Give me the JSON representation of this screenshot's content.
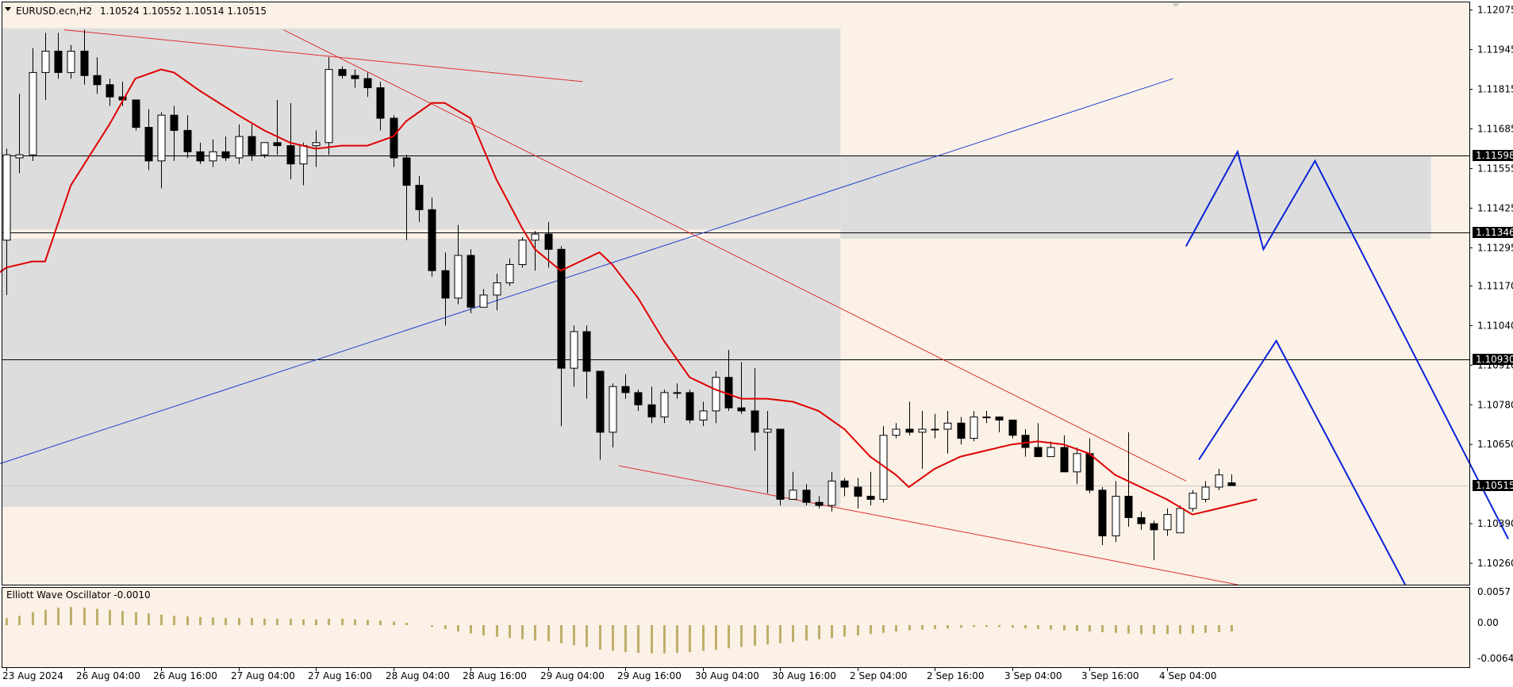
{
  "header": {
    "symbol": "EURUSD.ecn,H2",
    "ohlc": "1.10524 1.10552 1.10514 1.10515"
  },
  "indicator": {
    "label": "Elliott Wave Oscillator -0.0010",
    "scale": [
      "0.0057",
      "0.00",
      "-0.0064"
    ]
  },
  "colors": {
    "background": "#fbf1e6",
    "zone": "#dddddd",
    "bull_body": "#ffffff",
    "bear_body": "#000000",
    "ma": "#e00000",
    "trend_red": "#e03030",
    "trend_blue": "#1f3fd0",
    "projection": "#0a22d8",
    "oscillator": "#bfae6a"
  },
  "chart_data": {
    "type": "candlestick",
    "price_axis": {
      "ticks": [
        "1.12075",
        "1.11945",
        "1.11815",
        "1.11685",
        "1.11555",
        "1.11425",
        "1.11295",
        "1.11170",
        "1.11040",
        "1.10910",
        "1.10780",
        "1.10650",
        "1.10390",
        "1.10260"
      ],
      "ylim": [
        1.1019,
        1.121
      ]
    },
    "time_axis": {
      "labels": [
        "23 Aug 2024",
        "26 Aug 04:00",
        "26 Aug 16:00",
        "27 Aug 04:00",
        "27 Aug 16:00",
        "28 Aug 04:00",
        "28 Aug 16:00",
        "29 Aug 04:00",
        "29 Aug 16:00",
        "30 Aug 04:00",
        "30 Aug 16:00",
        "2 Sep 04:00",
        "2 Sep 16:00",
        "3 Sep 04:00",
        "3 Sep 16:00",
        "4 Sep 04:00"
      ],
      "label_bars": [
        0,
        6,
        12,
        18,
        24,
        30,
        36,
        42,
        48,
        54,
        60,
        66,
        72,
        78,
        84,
        90
      ]
    },
    "levels": [
      {
        "price": 1.11598,
        "label": "1.11598"
      },
      {
        "price": 1.11346,
        "label": "1.11346"
      },
      {
        "price": 1.1093,
        "label": "1.10930"
      }
    ],
    "current_price": {
      "price": 1.10515,
      "label": "1.10515"
    },
    "zones": [
      {
        "bar_from": -0.3,
        "bar_to": 64.7,
        "price_from": 1.11355,
        "price_to": 1.12015
      },
      {
        "bar_from": -0.3,
        "bar_to": 64.7,
        "price_from": 1.10445,
        "price_to": 1.11325
      },
      {
        "bar_from": 64.7,
        "bar_to": 110.5,
        "price_from": 1.11325,
        "price_to": 1.11598
      }
    ],
    "candles": [
      [
        1.1132,
        1.1162,
        1.1114,
        1.116
      ],
      [
        1.1159,
        1.118,
        1.1154,
        1.116
      ],
      [
        1.116,
        1.1195,
        1.1158,
        1.1187
      ],
      [
        1.1187,
        1.12,
        1.1178,
        1.1194
      ],
      [
        1.1194,
        1.12,
        1.1185,
        1.1187
      ],
      [
        1.1187,
        1.1196,
        1.1185,
        1.1194
      ],
      [
        1.1194,
        1.1201,
        1.1183,
        1.1186
      ],
      [
        1.1186,
        1.1192,
        1.118,
        1.1183
      ],
      [
        1.1183,
        1.1185,
        1.1176,
        1.1179
      ],
      [
        1.1179,
        1.1184,
        1.1176,
        1.1178
      ],
      [
        1.1178,
        1.1178,
        1.1168,
        1.1169
      ],
      [
        1.1169,
        1.1175,
        1.1155,
        1.1158
      ],
      [
        1.1158,
        1.1174,
        1.1149,
        1.1173
      ],
      [
        1.1173,
        1.1176,
        1.1158,
        1.1168
      ],
      [
        1.1168,
        1.1173,
        1.1159,
        1.1161
      ],
      [
        1.1161,
        1.1164,
        1.1157,
        1.1158
      ],
      [
        1.1158,
        1.1165,
        1.1156,
        1.1161
      ],
      [
        1.1161,
        1.1166,
        1.1158,
        1.1159
      ],
      [
        1.1159,
        1.117,
        1.1157,
        1.1166
      ],
      [
        1.1166,
        1.117,
        1.1158,
        1.116
      ],
      [
        1.116,
        1.1164,
        1.1159,
        1.1164
      ],
      [
        1.1164,
        1.1178,
        1.116,
        1.1163
      ],
      [
        1.1163,
        1.1177,
        1.1152,
        1.1157
      ],
      [
        1.1157,
        1.1164,
        1.115,
        1.1163
      ],
      [
        1.1163,
        1.1168,
        1.1156,
        1.1164
      ],
      [
        1.1164,
        1.1192,
        1.116,
        1.1188
      ],
      [
        1.1188,
        1.1189,
        1.1185,
        1.1186
      ],
      [
        1.1186,
        1.1188,
        1.1182,
        1.1185
      ],
      [
        1.1185,
        1.1187,
        1.1179,
        1.1182
      ],
      [
        1.1182,
        1.1184,
        1.1168,
        1.1172
      ],
      [
        1.1172,
        1.1173,
        1.1156,
        1.1159
      ],
      [
        1.1159,
        1.116,
        1.1132,
        1.115
      ],
      [
        1.115,
        1.1153,
        1.1138,
        1.1142
      ],
      [
        1.1142,
        1.1146,
        1.112,
        1.1122
      ],
      [
        1.1122,
        1.1128,
        1.1104,
        1.1113
      ],
      [
        1.1113,
        1.1137,
        1.1111,
        1.1127
      ],
      [
        1.1127,
        1.1129,
        1.1108,
        1.111
      ],
      [
        1.111,
        1.1116,
        1.111,
        1.1114
      ],
      [
        1.1114,
        1.1121,
        1.1109,
        1.1118
      ],
      [
        1.1118,
        1.1126,
        1.1117,
        1.1124
      ],
      [
        1.1124,
        1.1133,
        1.1123,
        1.1132
      ],
      [
        1.1132,
        1.1135,
        1.1122,
        1.1134
      ],
      [
        1.1134,
        1.1138,
        1.1123,
        1.1129
      ],
      [
        1.1129,
        1.113,
        1.1071,
        1.109
      ],
      [
        1.109,
        1.1104,
        1.1084,
        1.1102
      ],
      [
        1.1102,
        1.1104,
        1.108,
        1.1089
      ],
      [
        1.1089,
        1.1089,
        1.106,
        1.1069
      ],
      [
        1.1069,
        1.1085,
        1.1064,
        1.1084
      ],
      [
        1.1084,
        1.1088,
        1.108,
        1.1082
      ],
      [
        1.1082,
        1.1083,
        1.1076,
        1.1078
      ],
      [
        1.1078,
        1.1084,
        1.1072,
        1.1074
      ],
      [
        1.1074,
        1.1083,
        1.1072,
        1.1082
      ],
      [
        1.1082,
        1.1085,
        1.108,
        1.1082
      ],
      [
        1.1082,
        1.1083,
        1.1072,
        1.1073
      ],
      [
        1.1073,
        1.1079,
        1.1071,
        1.1076
      ],
      [
        1.1076,
        1.1089,
        1.1072,
        1.1087
      ],
      [
        1.1087,
        1.1096,
        1.1076,
        1.1077
      ],
      [
        1.1077,
        1.1092,
        1.1075,
        1.1076
      ],
      [
        1.1076,
        1.109,
        1.1063,
        1.1069
      ],
      [
        1.1069,
        1.1076,
        1.1049,
        1.107
      ],
      [
        1.107,
        1.107,
        1.1045,
        1.1047
      ],
      [
        1.1047,
        1.1056,
        1.1047,
        1.105
      ],
      [
        1.105,
        1.1052,
        1.1045,
        1.1046
      ],
      [
        1.1046,
        1.1048,
        1.1044,
        1.1045
      ],
      [
        1.1045,
        1.1056,
        1.1043,
        1.1053
      ],
      [
        1.1053,
        1.1054,
        1.1048,
        1.1051
      ],
      [
        1.1051,
        1.1054,
        1.1044,
        1.1048
      ],
      [
        1.1048,
        1.1056,
        1.1045,
        1.1047
      ],
      [
        1.1047,
        1.1071,
        1.1046,
        1.1068
      ],
      [
        1.1068,
        1.1072,
        1.1067,
        1.107
      ],
      [
        1.107,
        1.1079,
        1.1068,
        1.1069
      ],
      [
        1.1069,
        1.1076,
        1.1057,
        1.107
      ],
      [
        1.107,
        1.1075,
        1.1067,
        1.107
      ],
      [
        1.107,
        1.1076,
        1.1062,
        1.1072
      ],
      [
        1.1072,
        1.1074,
        1.1065,
        1.1067
      ],
      [
        1.1067,
        1.1076,
        1.1066,
        1.1074
      ],
      [
        1.1074,
        1.1076,
        1.1072,
        1.1074
      ],
      [
        1.1074,
        1.1074,
        1.1069,
        1.1073
      ],
      [
        1.1073,
        1.1073,
        1.1067,
        1.1068
      ],
      [
        1.1068,
        1.107,
        1.1061,
        1.1064
      ],
      [
        1.1064,
        1.1072,
        1.1061,
        1.1061
      ],
      [
        1.1061,
        1.1066,
        1.1061,
        1.1064
      ],
      [
        1.1064,
        1.1068,
        1.1056,
        1.1056
      ],
      [
        1.1056,
        1.1064,
        1.1052,
        1.1062
      ],
      [
        1.1062,
        1.1067,
        1.1049,
        1.105
      ],
      [
        1.105,
        1.1051,
        1.1032,
        1.1035
      ],
      [
        1.1035,
        1.1053,
        1.1033,
        1.1048
      ],
      [
        1.1048,
        1.1069,
        1.1038,
        1.1041
      ],
      [
        1.1041,
        1.1043,
        1.1037,
        1.1039
      ],
      [
        1.1039,
        1.104,
        1.1027,
        1.1037
      ],
      [
        1.1037,
        1.1044,
        1.1035,
        1.1042
      ],
      [
        1.1036,
        1.1045,
        1.1036,
        1.1044
      ],
      [
        1.1044,
        1.105,
        1.1043,
        1.1049
      ],
      [
        1.1047,
        1.1053,
        1.1046,
        1.1051
      ],
      [
        1.1051,
        1.1057,
        1.105,
        1.1055
      ],
      [
        1.10524,
        1.10552,
        1.10514,
        1.10515
      ]
    ],
    "ma_line": [
      [
        -1,
        1.112
      ],
      [
        0,
        1.1123
      ],
      [
        2,
        1.1125
      ],
      [
        3,
        1.1125
      ],
      [
        5,
        1.115
      ],
      [
        8,
        1.117
      ],
      [
        10,
        1.1185
      ],
      [
        12,
        1.1188
      ],
      [
        13,
        1.1187
      ],
      [
        15,
        1.1181
      ],
      [
        18,
        1.1173
      ],
      [
        20,
        1.1168
      ],
      [
        22,
        1.1164
      ],
      [
        24,
        1.1162
      ],
      [
        26,
        1.1163
      ],
      [
        28,
        1.1163
      ],
      [
        30,
        1.1166
      ],
      [
        31,
        1.1171
      ],
      [
        33,
        1.1177
      ],
      [
        34,
        1.1177
      ],
      [
        36,
        1.1172
      ],
      [
        37,
        1.1162
      ],
      [
        38,
        1.1152
      ],
      [
        39,
        1.1144
      ],
      [
        40,
        1.1136
      ],
      [
        41,
        1.1129
      ],
      [
        43,
        1.1122
      ],
      [
        44,
        1.1124
      ],
      [
        46,
        1.1128
      ],
      [
        47,
        1.1124
      ],
      [
        49,
        1.1113
      ],
      [
        51,
        1.1099
      ],
      [
        53,
        1.1087
      ],
      [
        55,
        1.1083
      ],
      [
        57,
        1.108
      ],
      [
        59,
        1.108
      ],
      [
        61,
        1.1079
      ],
      [
        63,
        1.1076
      ],
      [
        65,
        1.107
      ],
      [
        67,
        1.1061
      ],
      [
        69,
        1.1055
      ],
      [
        70,
        1.1051
      ],
      [
        72,
        1.1057
      ],
      [
        74,
        1.1061
      ],
      [
        76,
        1.1063
      ],
      [
        78,
        1.1065
      ],
      [
        80,
        1.1066
      ],
      [
        82,
        1.1065
      ],
      [
        84,
        1.1062
      ],
      [
        86,
        1.1055
      ],
      [
        88,
        1.1051
      ],
      [
        90,
        1.1047
      ],
      [
        92,
        1.1042
      ],
      [
        93,
        1.1043
      ],
      [
        95,
        1.1045
      ],
      [
        97,
        1.1047
      ]
    ],
    "trend_lines": [
      {
        "color": "red",
        "width": 1,
        "from": [
          4.5,
          1.1201
        ],
        "to": [
          44.7,
          1.1184
        ]
      },
      {
        "color": "red",
        "width": 1,
        "from": [
          21.5,
          1.1201
        ],
        "to": [
          91.5,
          1.1053
        ]
      },
      {
        "color": "red",
        "width": 1,
        "from": [
          47.5,
          1.1058
        ],
        "to": [
          95.5,
          1.1019
        ]
      },
      {
        "color": "blue",
        "width": 1,
        "from": [
          -1,
          1.1058
        ],
        "to": [
          90.5,
          1.1185
        ]
      }
    ],
    "projection_paths": [
      [
        [
          91.5,
          1.113
        ],
        [
          95.5,
          1.1161
        ],
        [
          97.5,
          1.1129
        ],
        [
          101.5,
          1.1158
        ],
        [
          116.5,
          1.1034
        ]
      ],
      [
        [
          92.5,
          1.106
        ],
        [
          98.5,
          1.1099
        ],
        [
          108.5,
          1.1019
        ]
      ]
    ],
    "oscillator": {
      "ylim": [
        -0.0064,
        0.0057
      ],
      "values": [
        0.0012,
        0.0016,
        0.0022,
        0.0026,
        0.003,
        0.0031,
        0.003,
        0.0028,
        0.0026,
        0.0024,
        0.0022,
        0.002,
        0.0018,
        0.0016,
        0.0015,
        0.0014,
        0.0013,
        0.0012,
        0.0012,
        0.0012,
        0.0011,
        0.0011,
        0.0011,
        0.001,
        0.001,
        0.0011,
        0.0011,
        0.001,
        0.0009,
        0.0008,
        0.0006,
        0.0004,
        0.0,
        -0.0003,
        -0.0006,
        -0.001,
        -0.0013,
        -0.0016,
        -0.0018,
        -0.002,
        -0.0022,
        -0.0024,
        -0.0025,
        -0.0028,
        -0.0031,
        -0.0034,
        -0.0038,
        -0.004,
        -0.0042,
        -0.0043,
        -0.0044,
        -0.0044,
        -0.0043,
        -0.0042,
        -0.004,
        -0.0038,
        -0.0036,
        -0.0034,
        -0.0032,
        -0.003,
        -0.0028,
        -0.0026,
        -0.0024,
        -0.0022,
        -0.002,
        -0.0018,
        -0.0016,
        -0.0014,
        -0.0012,
        -0.001,
        -0.0008,
        -0.0007,
        -0.0006,
        -0.0005,
        -0.0004,
        -0.0003,
        -0.0003,
        -0.0003,
        -0.0004,
        -0.0005,
        -0.0006,
        -0.0007,
        -0.0008,
        -0.0009,
        -0.001,
        -0.0011,
        -0.0012,
        -0.0013,
        -0.0014,
        -0.0014,
        -0.0014,
        -0.0014,
        -0.0013,
        -0.0012,
        -0.0011,
        -0.001
      ]
    }
  }
}
